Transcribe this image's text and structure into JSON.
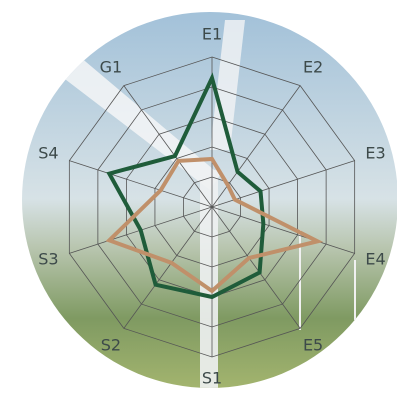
{
  "chart_data": {
    "type": "radar",
    "categories": [
      "E1",
      "E2",
      "E3",
      "E4",
      "E5",
      "S1",
      "S2",
      "S3",
      "S4",
      "G1"
    ],
    "series": [
      {
        "color": "#1f5c3a",
        "values": [
          4.3,
          1.45,
          1.7,
          1.8,
          2.7,
          3.0,
          3.2,
          2.5,
          3.6,
          2.1
        ]
      },
      {
        "color": "#c0906a",
        "values": [
          1.6,
          0.9,
          0.8,
          3.7,
          2.1,
          2.8,
          2.3,
          3.6,
          1.8,
          1.9
        ]
      }
    ],
    "ylim": [
      0,
      5
    ],
    "yticks": [
      1,
      2,
      3,
      4,
      5
    ],
    "grid": true
  }
}
